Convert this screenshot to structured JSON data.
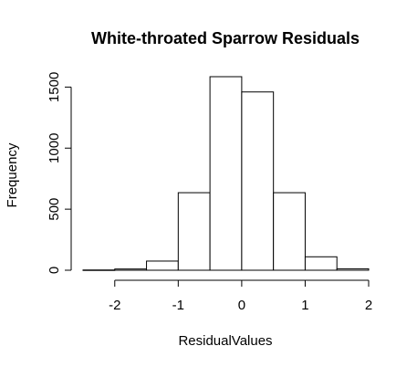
{
  "chart_data": {
    "type": "bar",
    "title": "White-throated Sparrow Residuals",
    "xlabel": "ResidualValues",
    "ylabel": "Frequency",
    "bins": [
      {
        "x0": -2.5,
        "x1": -2.0,
        "count": 2
      },
      {
        "x0": -2.0,
        "x1": -1.5,
        "count": 10
      },
      {
        "x0": -1.5,
        "x1": -1.0,
        "count": 75
      },
      {
        "x0": -1.0,
        "x1": -0.5,
        "count": 635
      },
      {
        "x0": -0.5,
        "x1": 0.0,
        "count": 1585
      },
      {
        "x0": 0.0,
        "x1": 0.5,
        "count": 1460
      },
      {
        "x0": 0.5,
        "x1": 1.0,
        "count": 635
      },
      {
        "x0": 1.0,
        "x1": 1.5,
        "count": 110
      },
      {
        "x0": 1.5,
        "x1": 2.0,
        "count": 12
      }
    ],
    "xticks": [
      -2,
      -1,
      0,
      1,
      2
    ],
    "xtick_labels": [
      "-2",
      "-1",
      "0",
      "1",
      "2"
    ],
    "yticks": [
      0,
      500,
      1000,
      1500
    ],
    "ytick_labels": [
      "0",
      "500",
      "1000",
      "1500"
    ],
    "xlim": [
      -2.5,
      2.0
    ],
    "ylim": [
      0,
      1600
    ],
    "grid": false,
    "bar_fill": "#ffffff",
    "bar_stroke": "#000000"
  }
}
